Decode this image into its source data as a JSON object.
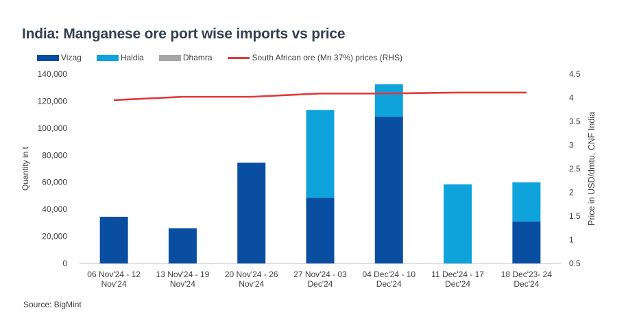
{
  "title": "India: Manganese ore port wise imports vs price",
  "source": "Source: BigMint",
  "colors": {
    "vizag": "#0a4ea2",
    "haldia": "#0fa3dc",
    "dhamra": "#a6a6a6",
    "price": "#e03a3a"
  },
  "chart_data": {
    "type": "bar",
    "stacked": true,
    "categories": [
      [
        "06 Nov'24 - 12",
        "Nov'24"
      ],
      [
        "13 Nov'24 - 19",
        "Nov'24"
      ],
      [
        "20 Nov'24 - 26",
        "Nov'24"
      ],
      [
        "27 Nov'24 - 03",
        "Dec'24"
      ],
      [
        "04 Dec'24 - 10",
        "Dec'24"
      ],
      [
        "11 Dec'24 - 17",
        "Dec'24"
      ],
      [
        "18 Dec'23- 24",
        "Dec'24"
      ]
    ],
    "series": [
      {
        "name": "Vizag",
        "values": [
          34500,
          26000,
          74500,
          48500,
          108500,
          0,
          31000
        ]
      },
      {
        "name": "Haldia",
        "values": [
          0,
          0,
          0,
          65000,
          24000,
          58500,
          29000
        ]
      },
      {
        "name": "Dhamra",
        "values": [
          0,
          0,
          0,
          0,
          0,
          0,
          0
        ]
      }
    ],
    "line_series": {
      "name": "South African ore (Mn 37%) prices (RHS)",
      "axis": "right",
      "values": [
        3.95,
        4.02,
        4.02,
        4.09,
        4.09,
        4.11,
        4.11
      ]
    },
    "ylabel": "Quantity in t",
    "y2label": "Price in USD/dmtu, CNF India",
    "ylim": [
      0,
      140000
    ],
    "y2lim": [
      0.5,
      4.5
    ],
    "yticks": [
      "0",
      "20,000",
      "40,000",
      "60,000",
      "80,000",
      "100,000",
      "120,000",
      "140,000"
    ],
    "y2ticks": [
      "0.5",
      "1",
      "1.5",
      "2",
      "2.5",
      "3",
      "3.5",
      "4",
      "4.5"
    ],
    "legend_position": "top-left",
    "grid": false
  }
}
